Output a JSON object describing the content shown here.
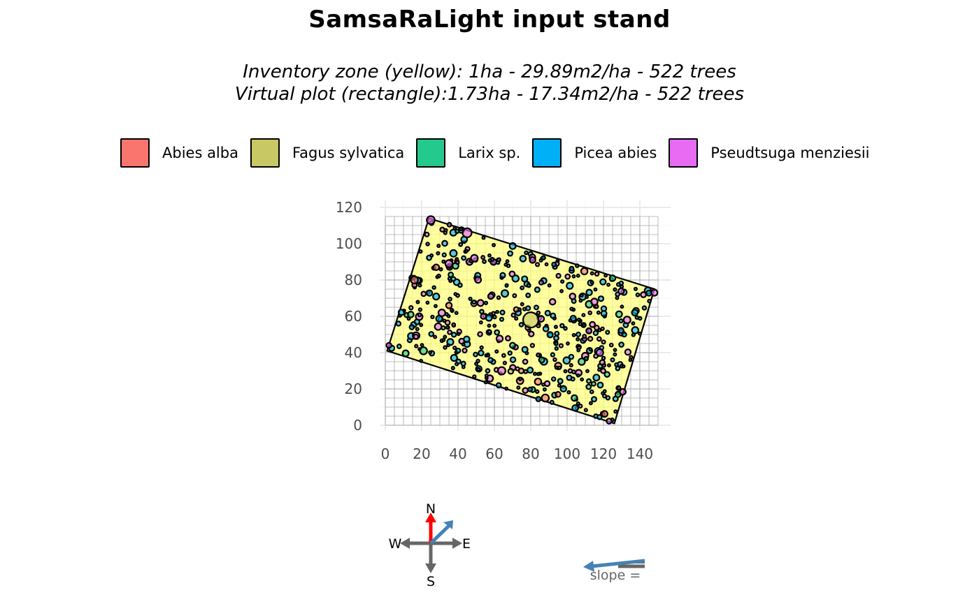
{
  "chart_data": {
    "type": "scatter",
    "title": "SamsaRaLight input stand",
    "subtitle_lines": [
      "Inventory zone (yellow): 1ha - 29.89m2/ha - 522 trees",
      "Virtual plot (rectangle):1.73ha - 17.34m2/ha - 522 trees"
    ],
    "xlim": [
      0,
      150
    ],
    "ylim": [
      0,
      120
    ],
    "x_ticks": [
      "0",
      "20",
      "40",
      "60",
      "80",
      "100",
      "120",
      "140"
    ],
    "y_ticks": [
      "0",
      "20",
      "40",
      "60",
      "80",
      "100",
      "120"
    ],
    "grid_cell_size": 5,
    "grid_extent": {
      "x": [
        0,
        150
      ],
      "y": [
        0,
        115
      ]
    },
    "legend_position": "top",
    "species": [
      {
        "name": "Abies alba",
        "color": "#F8766D"
      },
      {
        "name": "Fagus sylvatica",
        "color": "#C8C864"
      },
      {
        "name": "Larix sp.",
        "color": "#24C98E"
      },
      {
        "name": "Picea abies",
        "color": "#00B0F6"
      },
      {
        "name": "Pseudtsuga menziesii",
        "color": "#E76BF3"
      }
    ],
    "inventory_zone_color": "#FFFF80",
    "inventory_zone_polygon": [
      [
        1,
        41
      ],
      [
        24,
        114
      ],
      [
        148,
        75
      ],
      [
        126,
        1
      ]
    ],
    "trees": {
      "large": [
        {
          "x": 80,
          "y": 58,
          "r": 4.2,
          "sp": "Fagus sylvatica"
        },
        {
          "x": 45,
          "y": 106,
          "r": 2.5,
          "sp": "Pseudtsuga menziesii"
        },
        {
          "x": 25,
          "y": 113,
          "r": 2.2,
          "sp": "Pseudtsuga menziesii"
        },
        {
          "x": 16,
          "y": 80,
          "r": 2.0,
          "sp": "Abies alba"
        },
        {
          "x": 35,
          "y": 89,
          "r": 2.0,
          "sp": "Pseudtsuga menziesii"
        },
        {
          "x": 21,
          "y": 41,
          "r": 2.0,
          "sp": "Larix sp."
        },
        {
          "x": 64,
          "y": 30,
          "r": 2.1,
          "sp": "Pseudtsuga menziesii"
        },
        {
          "x": 88,
          "y": 15,
          "r": 2.0,
          "sp": "Abies alba"
        },
        {
          "x": 84,
          "y": 24,
          "r": 1.8,
          "sp": "Abies alba"
        },
        {
          "x": 108,
          "y": 35,
          "r": 1.8,
          "sp": "Larix sp."
        },
        {
          "x": 118,
          "y": 40,
          "r": 1.9,
          "sp": "Pseudtsuga menziesii"
        },
        {
          "x": 148,
          "y": 73,
          "r": 1.7,
          "sp": "Pseudtsuga menziesii"
        },
        {
          "x": 133,
          "y": 58,
          "r": 1.9,
          "sp": "Pseudtsuga menziesii"
        },
        {
          "x": 115,
          "y": 68,
          "r": 1.8,
          "sp": "Pseudtsuga menziesii"
        },
        {
          "x": 49,
          "y": 92,
          "r": 1.9,
          "sp": "Pseudtsuga menziesii"
        },
        {
          "x": 81,
          "y": 91,
          "r": 1.6,
          "sp": "Pseudtsuga menziesii"
        },
        {
          "x": 103,
          "y": 71,
          "r": 1.6,
          "sp": "Pseudtsuga menziesii"
        },
        {
          "x": 92,
          "y": 68,
          "r": 1.6,
          "sp": "Pseudtsuga menziesii"
        },
        {
          "x": 35,
          "y": 66,
          "r": 1.6,
          "sp": "Abies alba"
        },
        {
          "x": 28,
          "y": 87,
          "r": 1.6,
          "sp": "Abies alba"
        },
        {
          "x": 104,
          "y": 15,
          "r": 1.6,
          "sp": "Larix sp."
        },
        {
          "x": 125,
          "y": 81,
          "r": 1.6,
          "sp": "Larix sp."
        },
        {
          "x": 128,
          "y": 17,
          "r": 1.5,
          "sp": "Larix sp."
        },
        {
          "x": 14,
          "y": 61,
          "r": 1.6,
          "sp": "Larix sp."
        },
        {
          "x": 95,
          "y": 17,
          "r": 1.4,
          "sp": "Abies alba"
        },
        {
          "x": 2,
          "y": 44,
          "r": 1.4,
          "sp": "Pseudtsuga menziesii"
        },
        {
          "x": 58,
          "y": 71,
          "r": 1.5,
          "sp": "Pseudtsuga menziesii"
        },
        {
          "x": 112,
          "y": 52,
          "r": 1.5,
          "sp": "Pseudtsuga menziesii"
        },
        {
          "x": 70,
          "y": 44,
          "r": 1.5,
          "sp": "Larix sp."
        },
        {
          "x": 54,
          "y": 60,
          "r": 1.5,
          "sp": "Pseudtsuga menziesii"
        },
        {
          "x": 86,
          "y": 36,
          "r": 1.5,
          "sp": "Larix sp."
        },
        {
          "x": 122,
          "y": 28,
          "r": 1.4,
          "sp": "Larix sp."
        }
      ],
      "filler_count": 490,
      "filler_seed": 522
    }
  }
}
